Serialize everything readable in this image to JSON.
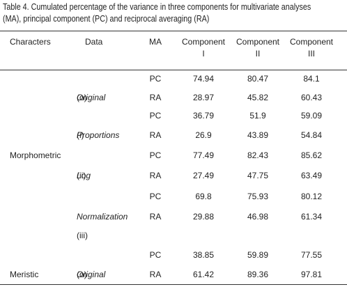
{
  "table": {
    "caption": [
      "Table 4. Cumulated percentage of the variance in three components for multivariate analyses",
      "(MA), principal component (PC) and reciprocal averaging (RA)"
    ],
    "header": {
      "characters": "Characters",
      "data": "Data",
      "ma": "MA",
      "components": [
        {
          "text": "Component",
          "numeral": "I"
        },
        {
          "text": "Component",
          "numeral": "II"
        },
        {
          "text": "Component",
          "numeral": "III"
        }
      ]
    },
    "rows": [
      {
        "ma": "PC",
        "values": [
          74.94,
          80.47,
          84.1
        ]
      },
      {
        "ma": "RA",
        "values": [
          28.97,
          45.82,
          60.43
        ]
      },
      {
        "ma": "PC",
        "values": [
          36.79,
          51.9,
          59.09
        ]
      },
      {
        "ma": "RA",
        "values": [
          26.9,
          43.89,
          54.84
        ]
      },
      {
        "ma": "PC",
        "values": [
          77.49,
          82.43,
          85.62
        ]
      },
      {
        "ma": "RA",
        "values": [
          27.49,
          47.75,
          63.49
        ]
      },
      {
        "ma": "PC",
        "values": [
          69.8,
          75.93,
          80.12
        ]
      },
      {
        "ma": "RA",
        "values": [
          29.88,
          46.98,
          61.34
        ]
      },
      {
        "ma": "PC",
        "values": [
          38.85,
          59.89,
          77.55
        ]
      },
      {
        "ma": "RA",
        "values": [
          61.42,
          89.36,
          97.81
        ]
      }
    ],
    "data_labels": [
      {
        "name": "Original",
        "code": "(o)"
      },
      {
        "name": "Proportions",
        "code": "(i)"
      },
      {
        "name": "Log",
        "code": "(ii)"
      },
      {
        "name": "Normalization",
        "code": "(iii)"
      },
      {
        "name": "Original",
        "code": "(o)"
      }
    ],
    "characters": [
      "Morphometric",
      "Meristic"
    ]
  }
}
